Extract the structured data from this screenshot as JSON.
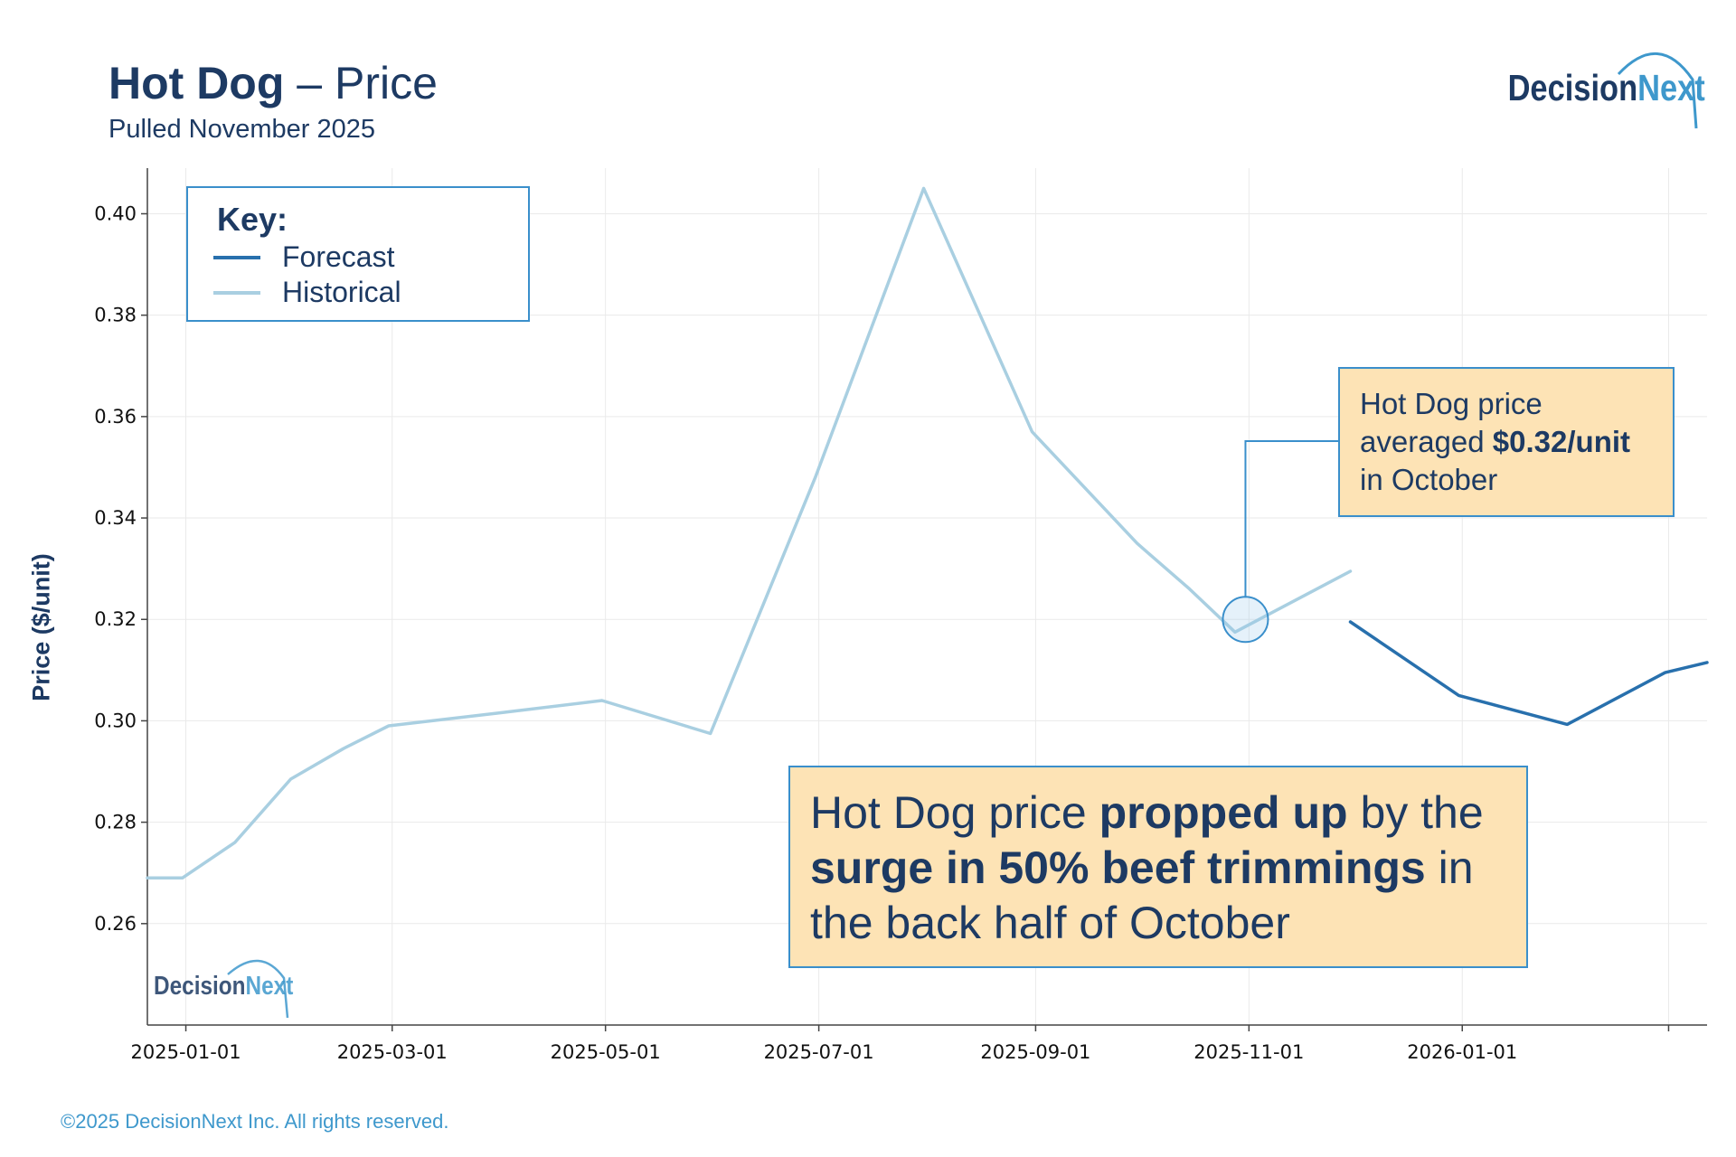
{
  "header": {
    "title_bold": "Hot Dog",
    "title_rest": " – Price",
    "subtitle": "Pulled November 2025"
  },
  "brand": {
    "logo_part1": "Decision",
    "logo_part2": "Next",
    "color_dark": "#1d3a63",
    "color_accent": "#3e98cc"
  },
  "key": {
    "title": "Key:",
    "items": [
      {
        "label": "Forecast",
        "color": "#2870ad"
      },
      {
        "label": "Historical",
        "color": "#a9cfe1"
      }
    ]
  },
  "callouts": {
    "october": {
      "line1": "Hot Dog price",
      "line2_pre": "averaged ",
      "line2_bold": "$0.32/unit",
      "line3": "in October"
    },
    "main": {
      "t1": "Hot Dog price ",
      "b1": "propped up",
      "t2": " by the",
      "b2": "surge in 50% beef trimmings",
      "t3": " in",
      "t4": "the back half of October"
    }
  },
  "footer": "©2025 DecisionNext Inc. All rights reserved.",
  "chart_data": {
    "type": "line",
    "title": "Hot Dog – Price",
    "subtitle": "Pulled November 2025",
    "xlabel": "",
    "ylabel": "Price ($/unit)",
    "ylim": [
      0.24,
      0.409
    ],
    "yticks": [
      0.26,
      0.28,
      0.3,
      0.32,
      0.34,
      0.36,
      0.38,
      0.4
    ],
    "xticks": [
      "2025-01-01",
      "2025-03-01",
      "2025-05-01",
      "2025-07-01",
      "2025-09-01",
      "2025-11-01",
      "2026-01-01",
      "2026-03-01"
    ],
    "xtick_labels": [
      "2025-01-01",
      "2025-03-01",
      "2025-05-01",
      "2025-07-01",
      "2025-09-01",
      "2025-11-01",
      "2026-01-01",
      ""
    ],
    "xlim": [
      "2024-12-21",
      "2026-03-12"
    ],
    "grid": true,
    "legend": "top-left",
    "series": [
      {
        "name": "Historical",
        "color": "#a9cfe1",
        "points": [
          [
            "2024-12-21",
            0.269
          ],
          [
            "2024-12-31",
            0.269
          ],
          [
            "2025-01-15",
            0.276
          ],
          [
            "2025-01-31",
            0.2885
          ],
          [
            "2025-02-15",
            0.2945
          ],
          [
            "2025-02-28",
            0.299
          ],
          [
            "2025-03-31",
            0.3015
          ],
          [
            "2025-04-30",
            0.304
          ],
          [
            "2025-05-31",
            0.2975
          ],
          [
            "2025-06-30",
            0.348
          ],
          [
            "2025-07-31",
            0.405
          ],
          [
            "2025-08-31",
            0.357
          ],
          [
            "2025-09-30",
            0.335
          ],
          [
            "2025-10-15",
            0.326
          ],
          [
            "2025-10-28",
            0.3175
          ],
          [
            "2025-11-30",
            0.3295
          ]
        ]
      },
      {
        "name": "Forecast",
        "color": "#2870ad",
        "points": [
          [
            "2025-11-30",
            0.3195
          ],
          [
            "2025-12-31",
            0.305
          ],
          [
            "2026-01-31",
            0.2993
          ],
          [
            "2026-02-28",
            0.3095
          ],
          [
            "2026-03-12",
            0.3115
          ]
        ]
      }
    ],
    "annotations": [
      {
        "date": "2025-10-31",
        "value": 0.32,
        "text": "Hot Dog price averaged $0.32/unit in October"
      },
      {
        "text": "Hot Dog price propped up by the surge in 50% beef trimmings in the back half of October"
      }
    ]
  }
}
